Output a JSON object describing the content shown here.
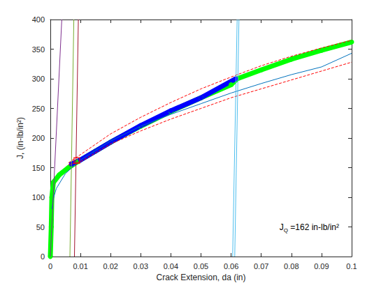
{
  "chart_data": {
    "type": "line",
    "x_label": "Crack Extension, da (in)",
    "y_label": "J, (in-lb/in²)",
    "annotation": {
      "base": "J",
      "subscript": "Q",
      "text": " =162 in-lb/in²"
    },
    "xlim": [
      0,
      0.1
    ],
    "xticks": [
      0,
      0.01,
      0.02,
      0.03,
      0.04,
      0.05,
      0.06,
      0.07,
      0.08,
      0.09,
      0.1
    ],
    "ylim": [
      0,
      400
    ],
    "yticks": [
      0,
      50,
      100,
      150,
      200,
      250,
      300,
      350,
      400
    ],
    "grid": false,
    "series": [
      {
        "color": "#00ff00",
        "marker": "circle",
        "line_style": "solid",
        "x": [
          0,
          0.0003,
          0.0005,
          0.001,
          0.003,
          0.006,
          0.009,
          0.015,
          0.02,
          0.03,
          0.04,
          0.05,
          0.06,
          0.062,
          0.07,
          0.08,
          0.09,
          0.1
        ],
        "values": [
          0,
          50,
          100,
          125,
          138,
          150,
          160,
          178,
          193,
          220,
          245,
          268,
          290,
          300,
          315,
          333,
          348,
          362
        ]
      },
      {
        "color": "#0000ff",
        "marker": "circle",
        "line_style": "solid",
        "x": [
          0.007,
          0.01,
          0.015,
          0.02,
          0.03,
          0.04,
          0.05,
          0.0615
        ],
        "values": [
          156,
          163,
          178,
          193,
          221,
          246,
          268,
          300
        ]
      },
      {
        "color": "#0072bd",
        "marker": "none",
        "line_style": "solid",
        "x": [
          0.0005,
          0.001,
          0.002,
          0.005,
          0.01,
          0.02,
          0.03,
          0.04,
          0.05,
          0.06,
          0.07,
          0.08,
          0.09,
          0.1
        ],
        "values": [
          80,
          98,
          115,
          140,
          163,
          195,
          220,
          240,
          258,
          276,
          292,
          307,
          320,
          343
        ]
      },
      {
        "color": "#ff0000",
        "marker": "none",
        "line_style": "dashed",
        "x": [
          0.006,
          0.01,
          0.02,
          0.03,
          0.04,
          0.05,
          0.06,
          0.07,
          0.08,
          0.09,
          0.1
        ],
        "values": [
          158,
          172,
          207,
          235,
          260,
          283,
          303,
          322,
          338,
          352,
          365
        ]
      },
      {
        "color": "#ff0000",
        "marker": "none",
        "line_style": "dashed",
        "x": [
          0.006,
          0.01,
          0.02,
          0.03,
          0.04,
          0.05,
          0.06,
          0.07,
          0.08,
          0.09,
          0.1
        ],
        "values": [
          155,
          160,
          190,
          212,
          232,
          250,
          268,
          283,
          298,
          313,
          328
        ]
      },
      {
        "color": "#7e2f8e",
        "marker": "none",
        "line_style": "solid",
        "x": [
          0,
          0.0038
        ],
        "values": [
          0,
          400
        ]
      },
      {
        "color": "#77ac30",
        "marker": "none",
        "line_style": "solid",
        "x": [
          0.0065,
          0.0078
        ],
        "values": [
          0,
          400
        ]
      },
      {
        "color": "#a2142f",
        "marker": "none",
        "line_style": "solid",
        "x": [
          0.008,
          0.0093
        ],
        "values": [
          0,
          400
        ]
      },
      {
        "color": "#4dbeee",
        "marker": "none",
        "line_style": "solid",
        "x": [
          0.0605,
          0.062
        ],
        "values": [
          0,
          400
        ]
      },
      {
        "color": "#4dbeee",
        "marker": "none",
        "line_style": "solid",
        "x": [
          0.0612,
          0.0626
        ],
        "values": [
          0,
          400
        ]
      },
      {
        "type": "scatter",
        "color": "#ff0000",
        "marker": "square",
        "x": [
          0.0088
        ],
        "values": [
          162
        ]
      }
    ]
  }
}
